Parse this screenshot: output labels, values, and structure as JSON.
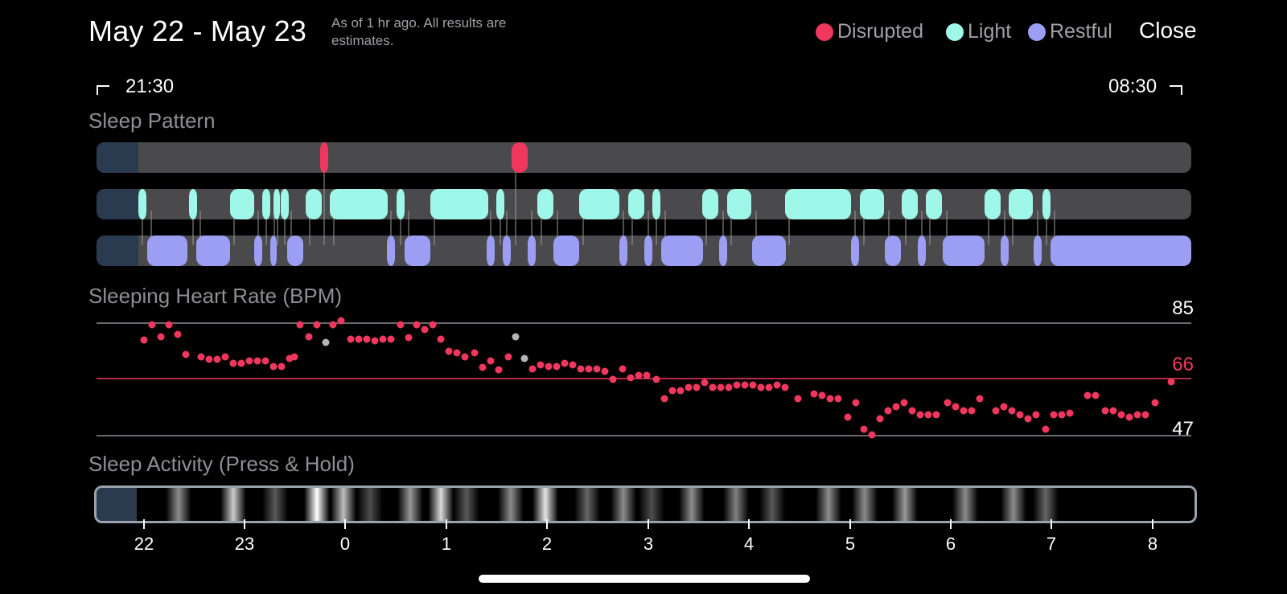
{
  "header": {
    "title": "May 22 - May 23",
    "note": "As of 1 hr ago. All results are estimates.",
    "close_label": "Close"
  },
  "legend": [
    {
      "label": "Disrupted",
      "color": "#f0385f"
    },
    {
      "label": "Light",
      "color": "#9ef7e8"
    },
    {
      "label": "Restful",
      "color": "#9b9ef2"
    }
  ],
  "range": {
    "start": "21:30",
    "end": "08:30"
  },
  "sections": {
    "sleep_pattern": "Sleep Pattern",
    "heart_rate": "Sleeping Heart Rate (BPM)",
    "activity": "Sleep Activity (Press & Hold)"
  },
  "heart_rate": {
    "max": "85",
    "avg": "66",
    "min": "47"
  },
  "x_axis": {
    "ticks": [
      "22",
      "23",
      "0",
      "1",
      "2",
      "3",
      "4",
      "5",
      "6",
      "7",
      "8"
    ]
  },
  "colors": {
    "disrupted": "#f0385f",
    "light": "#9ef7e8",
    "restful": "#9b9ef2",
    "track": "#4a4a4c",
    "start_block": "#2a3a4f",
    "avg_line": "#f0385f",
    "grid_line": "#8e8e93",
    "outlier": "#b5b5b5"
  }
}
